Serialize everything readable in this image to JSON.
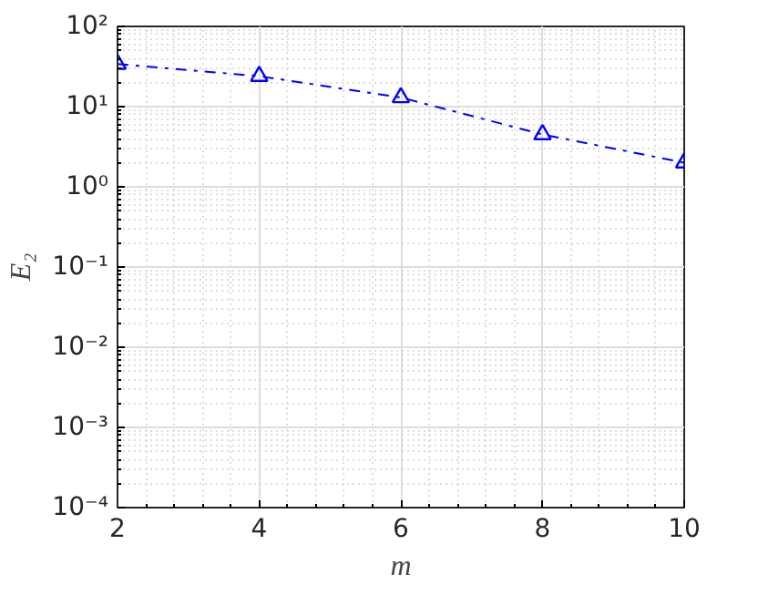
{
  "chart_data": {
    "type": "line",
    "xlabel": "m",
    "ylabel": "E₂",
    "x": [
      2,
      4,
      6,
      8,
      10
    ],
    "series": [
      {
        "color": "#0000ff",
        "values": [
          34,
          24,
          13,
          4.5,
          2.0
        ]
      }
    ],
    "xlim": [
      2,
      10
    ],
    "xticks": [
      2,
      4,
      6,
      8,
      10
    ],
    "ylim": [
      0.0001,
      100
    ],
    "yticks": [
      {
        "value": 0.0001,
        "label": "10⁻⁴"
      },
      {
        "value": 0.001,
        "label": "10⁻³"
      },
      {
        "value": 0.01,
        "label": "10⁻²"
      },
      {
        "value": 0.1,
        "label": "10⁻¹"
      },
      {
        "value": 1,
        "label": "10⁰"
      },
      {
        "value": 10,
        "label": "10¹"
      },
      {
        "value": 100,
        "label": "10²"
      }
    ],
    "log": "y",
    "grid": true,
    "marker": "triangle",
    "line_style": "dashdot"
  }
}
